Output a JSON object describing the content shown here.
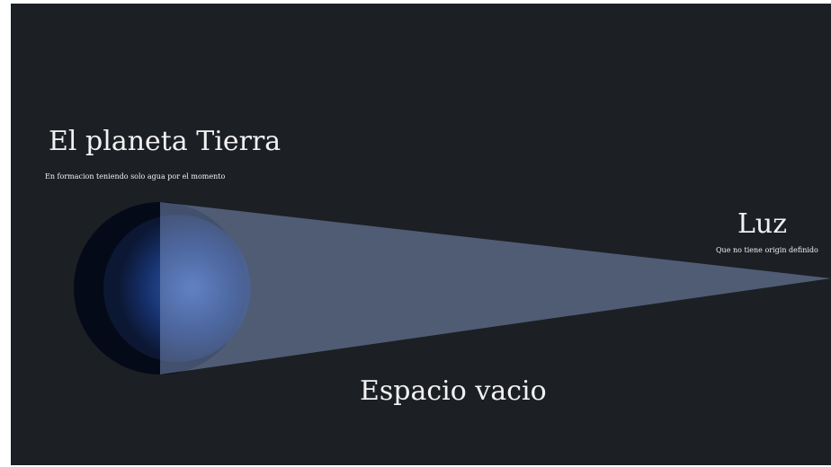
{
  "planet": {
    "title": "El planeta Tierra",
    "subtitle": "En formacion teniendo solo agua por el momento"
  },
  "light": {
    "title": "Luz",
    "subtitle": "Que no tiene origin definido"
  },
  "space": {
    "label": "Espacio vacio"
  }
}
